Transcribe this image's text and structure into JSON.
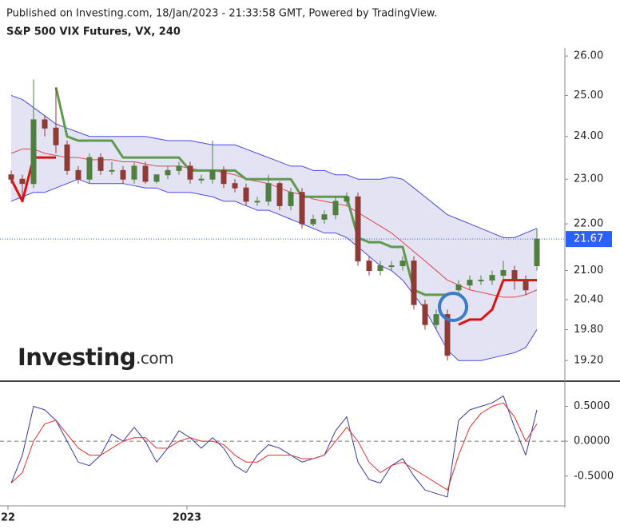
{
  "header": {
    "published": "Published on Investing.com, 18/Jan/2023 - 21:33:58 GMT, Powered by TradingView.",
    "title": "S&P 500 VIX Futures, VX, 240"
  },
  "chart_data": [
    {
      "type": "candlestick",
      "watermark": "Investing",
      "watermark_suffix": ".com",
      "log_scale": true,
      "ylim": [
        18.84,
        26.21
      ],
      "yticks": [
        {
          "value": 19.2,
          "label": "19.20"
        },
        {
          "value": 19.8,
          "label": "19.80"
        },
        {
          "value": 20.4,
          "label": "20.40"
        },
        {
          "value": 21,
          "label": "21.00"
        },
        {
          "value": 22,
          "label": "22.00"
        },
        {
          "value": 23,
          "label": "23.00"
        },
        {
          "value": 24,
          "label": "24.00"
        },
        {
          "value": 25,
          "label": "25.00"
        },
        {
          "value": 26,
          "label": "26.00"
        }
      ],
      "up_color": "#4f7f3f",
      "down_color": "#8e3b36",
      "last_price_color": "#2962ff",
      "open": [
        23.1,
        23.0,
        22.9,
        24.4,
        24.2,
        23.8,
        23.2,
        23.0,
        23.5,
        23.2,
        23.2,
        23.0,
        23.3,
        22.95,
        23.1,
        23.2,
        23.3,
        23.0,
        23.0,
        23.2,
        22.9,
        22.8,
        22.5,
        22.5,
        22.9,
        22.4,
        22.7,
        22.0,
        22.1,
        22.2,
        22.5,
        22.6,
        21.2,
        21.0,
        21.1,
        21.1,
        21.2,
        20.3,
        19.9,
        20.1,
        20.6,
        20.7,
        20.8,
        20.8,
        20.9,
        21.0,
        20.8,
        21.1
      ],
      "high": [
        23.2,
        23.1,
        25.4,
        24.5,
        25.2,
        23.9,
        23.3,
        23.6,
        23.6,
        23.4,
        23.3,
        23.4,
        23.4,
        23.1,
        23.3,
        23.4,
        23.4,
        23.1,
        23.9,
        23.3,
        23.0,
        22.9,
        22.6,
        23.1,
        22.95,
        22.8,
        22.8,
        22.2,
        22.3,
        22.6,
        22.7,
        22.7,
        21.3,
        21.2,
        21.2,
        21.3,
        21.3,
        20.4,
        20.2,
        20.2,
        20.8,
        20.9,
        20.9,
        21.0,
        21.2,
        21.1,
        20.9,
        21.9
      ],
      "low": [
        22.9,
        22.5,
        22.8,
        24.0,
        23.6,
        23.1,
        22.9,
        22.9,
        23.1,
        23.1,
        22.9,
        22.9,
        22.9,
        22.9,
        23.0,
        23.1,
        22.9,
        22.9,
        22.9,
        22.8,
        22.7,
        22.4,
        22.4,
        22.4,
        22.3,
        22.3,
        21.9,
        21.95,
        22.0,
        22.1,
        22.4,
        21.1,
        20.9,
        20.9,
        21.0,
        21.0,
        20.2,
        19.8,
        19.8,
        19.2,
        20.5,
        20.6,
        20.7,
        20.7,
        20.8,
        20.6,
        20.5,
        21.0
      ],
      "close": [
        23.0,
        22.9,
        24.4,
        24.2,
        23.8,
        23.2,
        23.0,
        23.5,
        23.2,
        23.2,
        23.0,
        23.3,
        22.95,
        23.1,
        23.2,
        23.3,
        23.0,
        23.0,
        23.2,
        22.9,
        22.8,
        22.5,
        22.5,
        22.9,
        22.4,
        22.7,
        22.0,
        22.1,
        22.2,
        22.5,
        22.6,
        21.2,
        21.0,
        21.1,
        21.1,
        21.2,
        20.3,
        19.9,
        20.1,
        19.3,
        20.7,
        20.8,
        20.8,
        20.9,
        21.0,
        20.8,
        20.6,
        21.67
      ],
      "band_fill": "#e3e3f3",
      "series": [
        {
          "color": "#4a4ae0",
          "values": [
            25.0,
            24.9,
            24.7,
            24.5,
            24.3,
            24.2,
            24.1,
            24.0,
            24.0,
            24.0,
            24.0,
            24.0,
            24.0,
            23.95,
            23.9,
            23.9,
            23.9,
            23.85,
            23.8,
            23.8,
            23.8,
            23.7,
            23.6,
            23.5,
            23.4,
            23.3,
            23.3,
            23.2,
            23.2,
            23.1,
            23.1,
            23.0,
            23.0,
            23.0,
            23.05,
            23.0,
            22.8,
            22.6,
            22.4,
            22.2,
            22.1,
            22.0,
            21.9,
            21.8,
            21.7,
            21.7,
            21.8,
            21.9
          ]
        },
        {
          "color": "#e04848",
          "values": [
            23.6,
            23.7,
            23.7,
            23.6,
            23.55,
            23.5,
            23.5,
            23.45,
            23.45,
            23.45,
            23.4,
            23.4,
            23.35,
            23.3,
            23.3,
            23.3,
            23.25,
            23.2,
            23.2,
            23.15,
            23.1,
            23.0,
            22.95,
            22.9,
            22.8,
            22.7,
            22.65,
            22.55,
            22.5,
            22.45,
            22.4,
            22.25,
            22.1,
            21.95,
            21.8,
            21.6,
            21.4,
            21.2,
            21.0,
            20.8,
            20.7,
            20.6,
            20.55,
            20.5,
            20.45,
            20.45,
            20.5,
            20.6
          ]
        },
        {
          "color": "#4a4ae0",
          "values": [
            22.5,
            22.6,
            22.7,
            22.7,
            22.8,
            22.9,
            23.0,
            22.9,
            22.9,
            22.9,
            22.9,
            22.85,
            22.8,
            22.8,
            22.7,
            22.7,
            22.7,
            22.65,
            22.6,
            22.5,
            22.5,
            22.4,
            22.3,
            22.3,
            22.2,
            22.1,
            22.0,
            21.9,
            21.8,
            21.8,
            21.7,
            21.5,
            21.3,
            21.1,
            21.0,
            20.8,
            20.5,
            20.2,
            19.8,
            19.4,
            19.2,
            19.2,
            19.2,
            19.25,
            19.3,
            19.35,
            19.45,
            19.8
          ]
        },
        {
          "color": "#5f9a4f",
          "values": [
            null,
            null,
            null,
            null,
            25.2,
            24.0,
            23.9,
            23.9,
            23.9,
            23.9,
            23.5,
            23.5,
            23.5,
            23.5,
            23.5,
            23.5,
            23.2,
            23.2,
            23.2,
            23.2,
            23.2,
            23.0,
            23.0,
            23.0,
            23.0,
            23.0,
            22.6,
            22.6,
            22.6,
            22.6,
            22.6,
            21.7,
            21.6,
            21.6,
            21.5,
            21.5,
            20.6,
            20.5,
            20.5,
            20.5,
            null,
            null,
            null,
            null,
            null,
            null,
            null,
            null
          ]
        },
        {
          "color": "#dd1111",
          "values": [
            23.0,
            22.5,
            23.5,
            23.5,
            23.5,
            null,
            null,
            null,
            null,
            null,
            null,
            null,
            null,
            null,
            null,
            null,
            null,
            null,
            null,
            null,
            null,
            null,
            null,
            null,
            null,
            null,
            null,
            null,
            null,
            null,
            null,
            null,
            null,
            null,
            null,
            null,
            null,
            null,
            null,
            null,
            19.9,
            20.0,
            20.0,
            20.2,
            20.8,
            20.8,
            20.8,
            20.8
          ]
        }
      ]
    },
    {
      "type": "line",
      "ylim": [
        -0.95,
        0.85
      ],
      "yticks": [
        {
          "value": 0.5,
          "label": "0.5000"
        },
        {
          "value": 0,
          "label": "0.0000"
        },
        {
          "value": -0.5,
          "label": "-0.5000"
        }
      ],
      "zero_line": true,
      "categories": [
        "22",
        null,
        null,
        null,
        null,
        null,
        null,
        null,
        null,
        null,
        null,
        null,
        null,
        null,
        null,
        null,
        "2023",
        null,
        null,
        null,
        null,
        null,
        null,
        null,
        null,
        null,
        null,
        null,
        null,
        null,
        null,
        null,
        null,
        null,
        null,
        null,
        null,
        null,
        null,
        null,
        null,
        null,
        null,
        null,
        null,
        null,
        null,
        null
      ],
      "series": [
        {
          "color": "#3a3aa0",
          "values": [
            -0.6,
            -0.2,
            0.5,
            0.45,
            0.3,
            0.0,
            -0.3,
            -0.35,
            -0.2,
            0.1,
            0.0,
            0.2,
            0.0,
            -0.3,
            -0.1,
            0.15,
            0.05,
            -0.1,
            0.05,
            -0.1,
            -0.35,
            -0.45,
            -0.2,
            -0.05,
            -0.1,
            -0.2,
            -0.3,
            -0.25,
            -0.2,
            0.15,
            0.35,
            -0.3,
            -0.55,
            -0.6,
            -0.35,
            -0.25,
            -0.5,
            -0.7,
            -0.75,
            -0.8,
            0.3,
            0.45,
            0.5,
            0.55,
            0.65,
            0.2,
            -0.2,
            0.45
          ]
        },
        {
          "color": "#e03030",
          "values": [
            -0.6,
            -0.45,
            0.0,
            0.25,
            0.3,
            0.1,
            -0.1,
            -0.2,
            -0.2,
            -0.1,
            0.0,
            0.05,
            0.05,
            -0.1,
            -0.1,
            0.0,
            0.05,
            0.0,
            0.0,
            -0.05,
            -0.2,
            -0.3,
            -0.3,
            -0.2,
            -0.2,
            -0.2,
            -0.25,
            -0.25,
            -0.2,
            0.0,
            0.2,
            0.0,
            -0.3,
            -0.45,
            -0.35,
            -0.3,
            -0.4,
            -0.5,
            -0.6,
            -0.7,
            -0.2,
            0.2,
            0.4,
            0.5,
            0.55,
            0.35,
            0.0,
            0.25
          ]
        }
      ]
    }
  ]
}
